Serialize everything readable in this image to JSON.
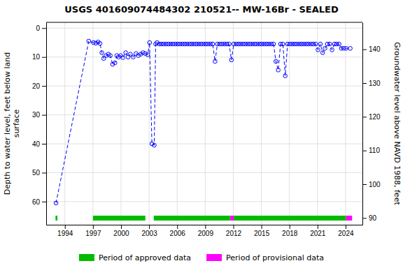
{
  "chart_data": {
    "type": "line",
    "title": "USGS 401609074484302 210521-- MW-16Br - SEALED",
    "y_label": "Depth to water level, feet below land\n surface",
    "y2_label": "Groundwater level above NAVD 1988, feet",
    "xlim": [
      1992.0,
      2025.8
    ],
    "xticks": [
      1994,
      1997,
      2000,
      2003,
      2006,
      2009,
      2012,
      2015,
      2018,
      2021,
      2024
    ],
    "ylim": [
      68,
      -2
    ],
    "yticks": [
      0,
      10,
      20,
      30,
      40,
      50,
      60
    ],
    "y2lim": [
      88,
      148
    ],
    "y2ticks": [
      90,
      100,
      110,
      120,
      130,
      140
    ],
    "grid": true,
    "legend": "bottom",
    "x": [
      1993.05,
      1996.55,
      1997.05,
      1997.3,
      1997.55,
      1997.75,
      1997.95,
      1998.15,
      1998.4,
      1998.65,
      1998.85,
      1999.1,
      1999.35,
      1999.55,
      1999.75,
      1999.95,
      2000.2,
      2000.5,
      2000.75,
      2001.0,
      2001.3,
      2001.6,
      2001.85,
      2002.1,
      2002.35,
      2002.6,
      2002.85,
      2003.05,
      2003.3,
      2003.55,
      2003.7,
      2003.85,
      2004.1,
      2004.3,
      2004.55,
      2004.8,
      2005.05,
      2005.3,
      2005.55,
      2005.8,
      2006.05,
      2006.3,
      2006.55,
      2006.8,
      2007.05,
      2007.3,
      2007.55,
      2007.8,
      2008.05,
      2008.3,
      2008.55,
      2008.8,
      2009.05,
      2009.3,
      2009.55,
      2009.8,
      2010.05,
      2010.3,
      2010.55,
      2010.8,
      2011.05,
      2011.3,
      2011.55,
      2011.8,
      2012.05,
      2012.3,
      2012.55,
      2012.8,
      2013.05,
      2013.3,
      2013.55,
      2013.8,
      2014.05,
      2014.3,
      2014.55,
      2014.8,
      2015.05,
      2015.3,
      2015.55,
      2015.8,
      2016.05,
      2016.3,
      2016.55,
      2016.8,
      2017.05,
      2017.3,
      2017.55,
      2017.8,
      2018.05,
      2018.3,
      2018.55,
      2018.8,
      2019.05,
      2019.3,
      2019.55,
      2019.8,
      2020.05,
      2020.3,
      2020.55,
      2020.8,
      2021.05,
      2021.3,
      2021.55,
      2021.8,
      2022.05,
      2022.3,
      2022.55,
      2022.8,
      2023.05,
      2023.3,
      2023.55,
      2023.8,
      2024.05,
      2024.5
    ],
    "series": [
      {
        "color": "#0000ff",
        "marker": "circle",
        "line_style": "dashed",
        "values": [
          60.5,
          4.5,
          5.0,
          5.2,
          4.8,
          5.3,
          8.5,
          10.5,
          9.5,
          9.0,
          9.5,
          12.5,
          12.0,
          9.5,
          10.0,
          9.5,
          10.2,
          8.5,
          10.0,
          9.0,
          10.0,
          8.8,
          9.5,
          9.0,
          8.5,
          8.8,
          9.2,
          5.0,
          40.0,
          40.5,
          5.5,
          5.0,
          5.5,
          5.5,
          5.5,
          5.5,
          5.5,
          5.5,
          5.5,
          5.5,
          5.5,
          5.5,
          5.5,
          5.5,
          5.5,
          5.5,
          5.5,
          5.5,
          5.5,
          5.5,
          5.5,
          5.5,
          5.5,
          5.5,
          5.5,
          5.5,
          11.5,
          5.5,
          5.5,
          5.5,
          5.5,
          5.5,
          5.5,
          11.0,
          5.5,
          5.5,
          5.5,
          5.5,
          5.5,
          5.5,
          5.5,
          5.5,
          5.5,
          5.5,
          5.5,
          5.5,
          5.5,
          5.5,
          5.5,
          5.5,
          5.5,
          5.5,
          11.5,
          14.5,
          5.5,
          5.5,
          16.5,
          5.5,
          5.5,
          5.5,
          5.5,
          5.5,
          5.5,
          5.5,
          5.5,
          5.5,
          5.5,
          5.5,
          5.5,
          5.5,
          7.5,
          5.5,
          8.5,
          7.0,
          5.5,
          5.5,
          7.5,
          5.5,
          5.5,
          5.5,
          7.0,
          7.0,
          7.0,
          7.0
        ]
      }
    ],
    "periods": [
      {
        "name": "Period of approved data",
        "color": "#00bb00",
        "ranges": [
          [
            1993.0,
            1993.2
          ],
          [
            1997.0,
            2002.6
          ],
          [
            2003.5,
            2011.65
          ],
          [
            2012.05,
            2024.05
          ]
        ]
      },
      {
        "name": "Period of provisional data",
        "color": "#ff00ff",
        "ranges": [
          [
            2011.65,
            2012.05
          ],
          [
            2024.05,
            2024.7
          ]
        ]
      }
    ]
  }
}
